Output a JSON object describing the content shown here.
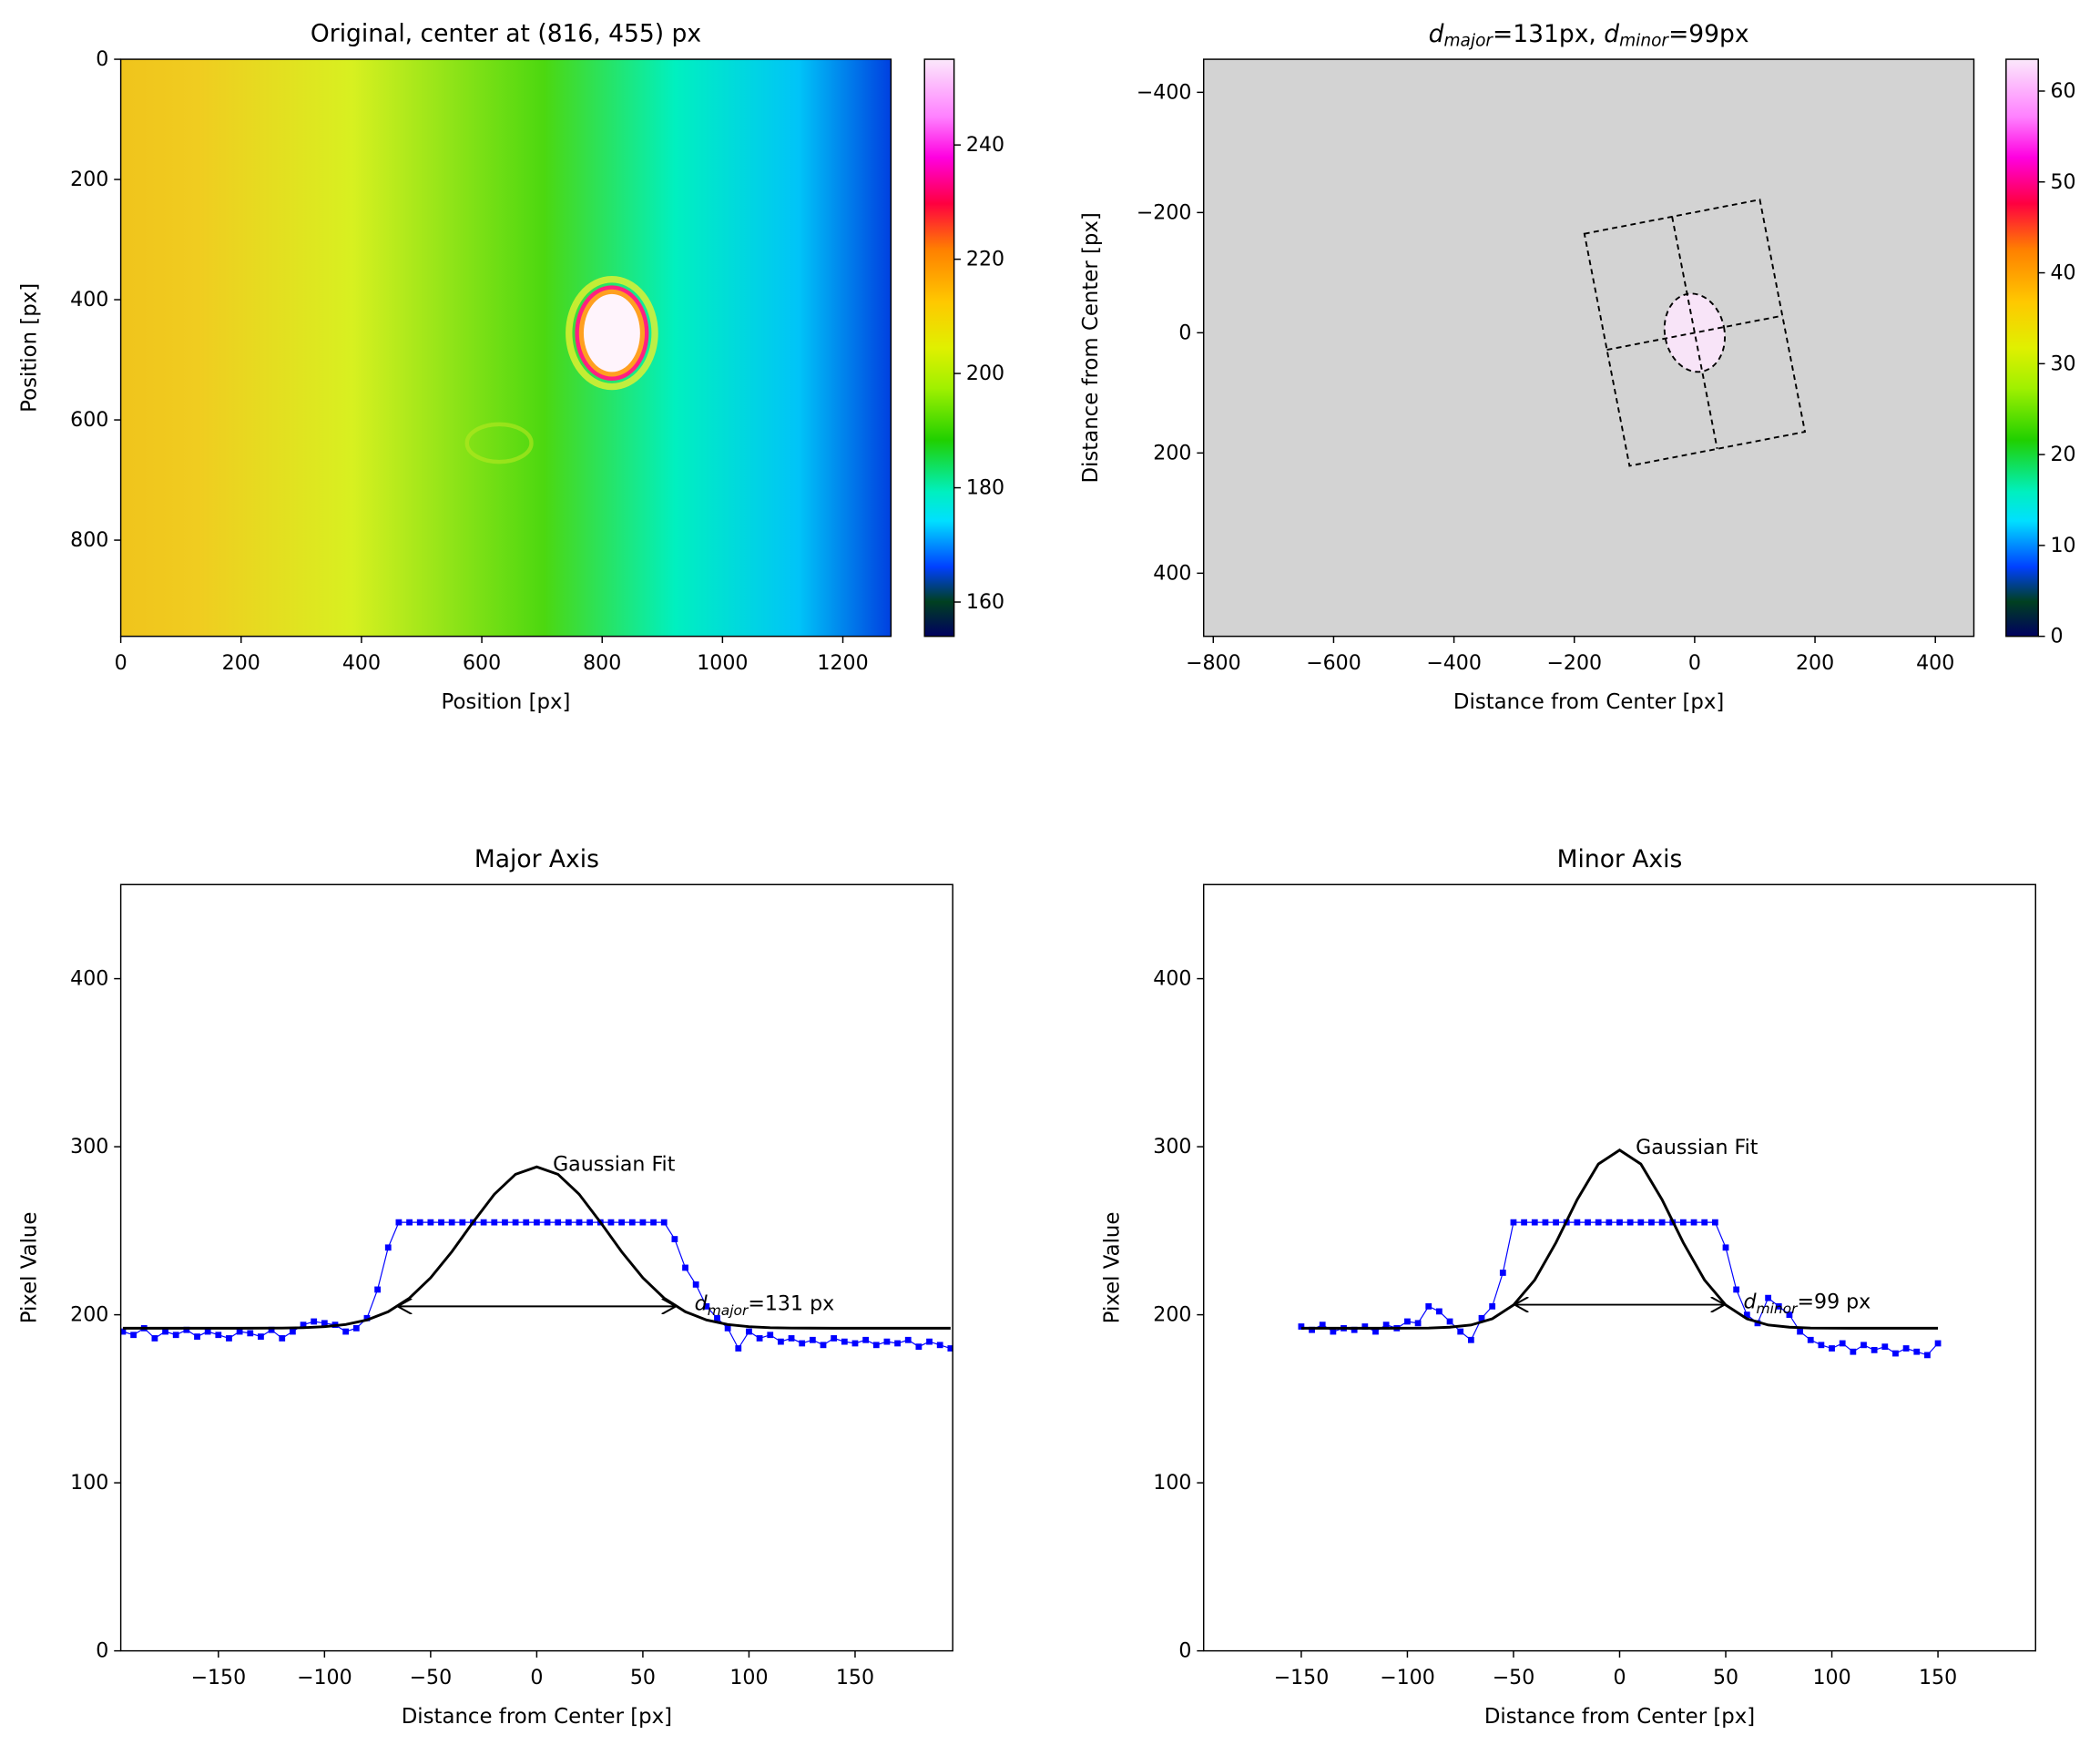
{
  "chart_data": [
    {
      "type": "image",
      "title": "Original, center at (816, 455) px",
      "x_label": "Position [px]",
      "y_label": "Position [px]",
      "xlim": [
        0,
        1280
      ],
      "ylim": [
        960,
        0
      ],
      "xticks": [
        0,
        200,
        400,
        600,
        800,
        1000,
        1200
      ],
      "yticks": [
        0,
        200,
        400,
        600,
        800
      ],
      "colorbar": {
        "lim": [
          154,
          255
        ],
        "ticks": [
          160,
          180,
          200,
          220,
          240
        ]
      }
    },
    {
      "type": "image",
      "title": [
        {
          "base": "d",
          "sub": "major",
          "rest": "=131px, "
        },
        {
          "base": "d",
          "sub": "minor",
          "rest": "=99px"
        }
      ],
      "x_label": "Distance from Center [px]",
      "y_label": "Distance from Center [px]",
      "background": "#d3d3d3",
      "xlim": [
        -816,
        464
      ],
      "ylim": [
        505,
        -455
      ],
      "xticks": [
        {
          "value": -800,
          "label": "−800"
        },
        {
          "value": -600,
          "label": "−600"
        },
        {
          "value": -400,
          "label": "−400"
        },
        {
          "value": -200,
          "label": "−200"
        },
        0,
        200,
        400
      ],
      "yticks": [
        {
          "value": -400,
          "label": "−400"
        },
        {
          "value": -200,
          "label": "−200"
        },
        0,
        200,
        400
      ],
      "ellipse": {
        "center": [
          0,
          0
        ],
        "major": 131,
        "minor": 99,
        "rotation": 11
      },
      "colorbar": {
        "lim": [
          0,
          63.5
        ],
        "ticks": [
          0,
          10,
          20,
          30,
          40,
          50,
          60
        ]
      }
    },
    {
      "type": "line",
      "title": "Major Axis",
      "x_label": "Distance from Center [px]",
      "y_label": "Pixel Value",
      "xlim": [
        -196,
        196
      ],
      "ylim": [
        0,
        456
      ],
      "xticks": [
        {
          "value": -150,
          "label": "−150"
        },
        {
          "value": -100,
          "label": "−100"
        },
        {
          "value": -50,
          "label": "−50"
        },
        0,
        50,
        100,
        150
      ],
      "yticks": [
        0,
        100,
        200,
        300,
        400
      ],
      "series": [
        {
          "color": "#0000ff",
          "markers": true,
          "x": [
            -195,
            -190,
            -185,
            -180,
            -175,
            -170,
            -165,
            -160,
            -155,
            -150,
            -145,
            -140,
            -135,
            -130,
            -125,
            -120,
            -115,
            -110,
            -105,
            -100,
            -95,
            -90,
            -85,
            -80,
            -75,
            -70,
            -65,
            -60,
            -55,
            -50,
            -45,
            -40,
            -35,
            -30,
            -25,
            -20,
            -15,
            -10,
            -5,
            0,
            5,
            10,
            15,
            20,
            25,
            30,
            35,
            40,
            45,
            50,
            55,
            60,
            65,
            70,
            75,
            80,
            85,
            90,
            95,
            100,
            105,
            110,
            115,
            120,
            125,
            130,
            135,
            140,
            145,
            150,
            155,
            160,
            165,
            170,
            175,
            180,
            185,
            190,
            195
          ],
          "values": [
            190,
            188,
            192,
            186,
            190,
            188,
            191,
            187,
            190,
            188,
            186,
            190,
            189,
            187,
            191,
            186,
            190,
            194,
            196,
            195,
            194,
            190,
            192,
            198,
            215,
            240,
            255,
            255,
            255,
            255,
            255,
            255,
            255,
            255,
            255,
            255,
            255,
            255,
            255,
            255,
            255,
            255,
            255,
            255,
            255,
            255,
            255,
            255,
            255,
            255,
            255,
            255,
            245,
            228,
            218,
            205,
            198,
            192,
            180,
            190,
            186,
            188,
            184,
            186,
            183,
            185,
            182,
            186,
            184,
            183,
            185,
            182,
            184,
            183,
            185,
            181,
            184,
            182,
            180
          ]
        },
        {
          "color": "#000000",
          "markers": false,
          "x": [
            -195,
            -180,
            -160,
            -140,
            -120,
            -110,
            -100,
            -90,
            -80,
            -70,
            -60,
            -50,
            -40,
            -30,
            -20,
            -10,
            0,
            10,
            20,
            30,
            40,
            50,
            60,
            70,
            80,
            90,
            100,
            110,
            120,
            140,
            160,
            180,
            195
          ],
          "values": [
            192,
            192,
            192,
            192,
            192.1,
            192.3,
            192.9,
            194.2,
            196.9,
            201.8,
            209.9,
            222.0,
            237.5,
            255.1,
            271.7,
            283.6,
            288,
            283.6,
            271.7,
            255.1,
            237.5,
            222.0,
            209.9,
            201.8,
            196.9,
            194.2,
            192.9,
            192.3,
            192.1,
            192,
            192,
            192,
            192
          ]
        }
      ],
      "fit_label": "Gaussian Fit",
      "width_annotation": {
        "bounds": [
          -65.5,
          65.5
        ],
        "level": 205,
        "text": {
          "base": "d",
          "sub": "major",
          "rest": "=131 px"
        }
      }
    },
    {
      "type": "line",
      "title": "Minor Axis",
      "x_label": "Distance from Center [px]",
      "y_label": "Pixel Value",
      "xlim": [
        -196,
        196
      ],
      "ylim": [
        0,
        456
      ],
      "xticks": [
        {
          "value": -150,
          "label": "−150"
        },
        {
          "value": -100,
          "label": "−100"
        },
        {
          "value": -50,
          "label": "−50"
        },
        0,
        50,
        100,
        150
      ],
      "yticks": [
        0,
        100,
        200,
        300,
        400
      ],
      "series": [
        {
          "color": "#0000ff",
          "markers": true,
          "x": [
            -150,
            -145,
            -140,
            -135,
            -130,
            -125,
            -120,
            -115,
            -110,
            -105,
            -100,
            -95,
            -90,
            -85,
            -80,
            -75,
            -70,
            -65,
            -60,
            -55,
            -50,
            -45,
            -40,
            -35,
            -30,
            -25,
            -20,
            -15,
            -10,
            -5,
            0,
            5,
            10,
            15,
            20,
            25,
            30,
            35,
            40,
            45,
            50,
            55,
            60,
            65,
            70,
            75,
            80,
            85,
            90,
            95,
            100,
            105,
            110,
            115,
            120,
            125,
            130,
            135,
            140,
            145,
            150
          ],
          "values": [
            193,
            191,
            194,
            190,
            192,
            191,
            193,
            190,
            194,
            192,
            196,
            195,
            205,
            202,
            196,
            190,
            185,
            198,
            205,
            225,
            255,
            255,
            255,
            255,
            255,
            255,
            255,
            255,
            255,
            255,
            255,
            255,
            255,
            255,
            255,
            255,
            255,
            255,
            255,
            255,
            240,
            215,
            200,
            195,
            210,
            205,
            200,
            190,
            185,
            182,
            180,
            183,
            178,
            182,
            179,
            181,
            177,
            180,
            178,
            176,
            183
          ]
        },
        {
          "color": "#000000",
          "markers": false,
          "x": [
            -150,
            -130,
            -110,
            -90,
            -80,
            -70,
            -60,
            -50,
            -40,
            -30,
            -20,
            -10,
            0,
            10,
            20,
            30,
            40,
            50,
            60,
            70,
            80,
            90,
            110,
            130,
            150
          ],
          "values": [
            192,
            192,
            192,
            192.1,
            192.6,
            193.9,
            197.6,
            205.8,
            220.7,
            242.9,
            268.5,
            289.7,
            298,
            289.7,
            268.5,
            242.9,
            220.7,
            205.8,
            197.6,
            193.9,
            192.6,
            192.1,
            192,
            192,
            192
          ]
        }
      ],
      "fit_label": "Gaussian Fit",
      "width_annotation": {
        "bounds": [
          -49.5,
          49.5
        ],
        "level": 206,
        "text": {
          "base": "d",
          "sub": "minor",
          "rest": "=99 px"
        }
      }
    }
  ]
}
